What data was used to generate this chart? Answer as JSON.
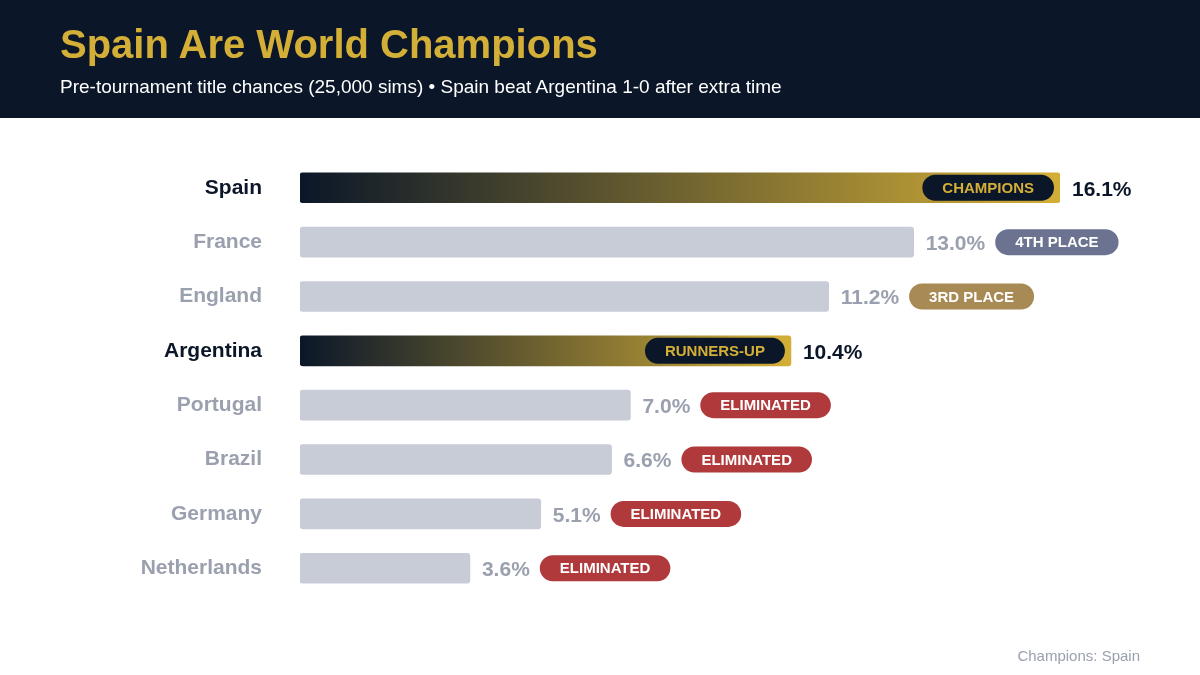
{
  "chart_data": {
    "type": "bar",
    "orientation": "horizontal",
    "title": "Spain Are World Champions",
    "subtitle": "Pre-tournament title chances (25,000 sims) • Spain beat Argentina 1-0 after extra time",
    "categories": [
      "Spain",
      "France",
      "England",
      "Argentina",
      "Portugal",
      "Brazil",
      "Germany",
      "Netherlands"
    ],
    "values": [
      16.1,
      13.0,
      11.2,
      10.4,
      7.0,
      6.6,
      5.1,
      3.6
    ],
    "value_labels": [
      "16.1%",
      "13.0%",
      "11.2%",
      "10.4%",
      "7.0%",
      "6.6%",
      "5.1%",
      "3.6%"
    ],
    "colors": [
      "#d4af37",
      "#c8ccd6",
      "#c8ccd6",
      "#d4af37",
      "#c8ccd6",
      "#c8ccd6",
      "#c8ccd6",
      "#c8ccd6"
    ],
    "tick_labels": "y",
    "legend": false,
    "annotations": [
      "CHAMPIONS",
      "4TH PLACE",
      "3RD PLACE",
      "RUNNERS-UP",
      "ELIMINATED",
      "ELIMINATED",
      "ELIMINATED",
      "ELIMINATED",
      "Champions: Spain"
    ]
  }
}
